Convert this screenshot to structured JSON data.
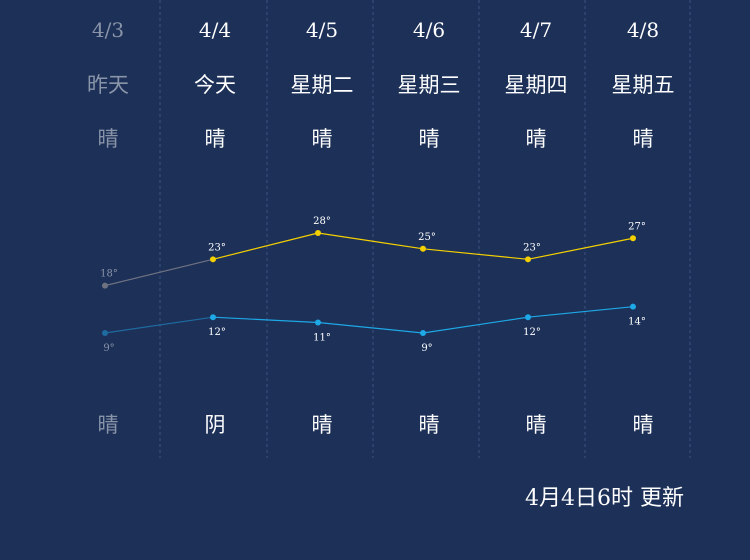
{
  "colors": {
    "background": "#1c3058",
    "high_line": "#f5d000",
    "low_line": "#1ea8e6",
    "past_high": "#6f7280",
    "past_low": "#1f6aa0",
    "past_text": "#8a94a8"
  },
  "chart_data": {
    "type": "line",
    "categories": [
      "4/3",
      "4/4",
      "4/5",
      "4/6",
      "4/7",
      "4/8"
    ],
    "day_labels": [
      "昨天",
      "今天",
      "星期二",
      "星期三",
      "星期四",
      "星期五"
    ],
    "day_weather": [
      "晴",
      "晴",
      "晴",
      "晴",
      "晴",
      "晴"
    ],
    "night_weather": [
      "晴",
      "阴",
      "晴",
      "晴",
      "晴",
      "晴"
    ],
    "series": [
      {
        "values": [
          18,
          23,
          28,
          25,
          23,
          27
        ],
        "labels": [
          "18°",
          "23°",
          "28°",
          "25°",
          "23°",
          "27°"
        ]
      },
      {
        "values": [
          9,
          12,
          11,
          9,
          12,
          14
        ],
        "labels": [
          "9°",
          "12°",
          "11°",
          "9°",
          "12°",
          "14°"
        ]
      }
    ],
    "past_count": 1,
    "ylim": [
      6,
      31
    ],
    "grid": false
  },
  "update_time": "4月4日6时 更新"
}
